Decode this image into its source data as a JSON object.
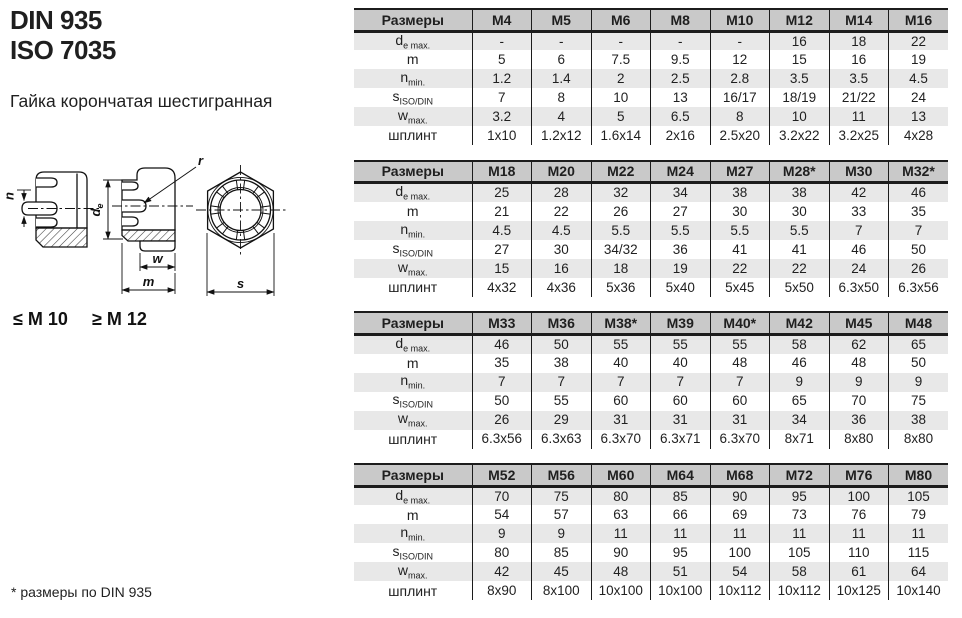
{
  "header": {
    "standard1": "DIN 935",
    "standard2": "ISO 7035",
    "product_name": "Гайка корончатая шестигранная"
  },
  "drawing": {
    "size_small": "≤ M 10",
    "size_large": "≥ M 12",
    "dims": {
      "n": "n",
      "de_main": "d",
      "de_sub": "e",
      "r": "r",
      "w": "w",
      "m": "m",
      "s": "s"
    }
  },
  "footnote": "* размеры по DIN 935",
  "colors": {
    "table_header_bg": "#c9c9c9",
    "row_stripe_bg": "#e8e8e8",
    "table_line": "#1c1c1c"
  },
  "tables": [
    {
      "header_label": "Размеры",
      "columns": [
        "M4",
        "M5",
        "M6",
        "M8",
        "M10",
        "M12",
        "M14",
        "M16"
      ],
      "rows": [
        {
          "label_main": "d",
          "label_sub": "e max.",
          "values": [
            "-",
            "-",
            "-",
            "-",
            "-",
            "16",
            "18",
            "22"
          ]
        },
        {
          "label_main": "m",
          "label_sub": "",
          "values": [
            "5",
            "6",
            "7.5",
            "9.5",
            "12",
            "15",
            "16",
            "19"
          ]
        },
        {
          "label_main": "n",
          "label_sub": "min.",
          "values": [
            "1.2",
            "1.4",
            "2",
            "2.5",
            "2.8",
            "3.5",
            "3.5",
            "4.5"
          ]
        },
        {
          "label_main": "s",
          "label_sub": "ISO/DIN",
          "values": [
            "7",
            "8",
            "10",
            "13",
            "16/17",
            "18/19",
            "21/22",
            "24"
          ]
        },
        {
          "label_main": "w",
          "label_sub": "max.",
          "values": [
            "3.2",
            "4",
            "5",
            "6.5",
            "8",
            "10",
            "11",
            "13"
          ]
        },
        {
          "label_main": "шплинт",
          "label_sub": "",
          "values": [
            "1x10",
            "1.2x12",
            "1.6x14",
            "2x16",
            "2.5x20",
            "3.2x22",
            "3.2x25",
            "4x28"
          ]
        }
      ]
    },
    {
      "header_label": "Размеры",
      "columns": [
        "M18",
        "M20",
        "M22",
        "M24",
        "M27",
        "M28*",
        "M30",
        "M32*"
      ],
      "rows": [
        {
          "label_main": "d",
          "label_sub": "e max.",
          "values": [
            "25",
            "28",
            "32",
            "34",
            "38",
            "38",
            "42",
            "46"
          ]
        },
        {
          "label_main": "m",
          "label_sub": "",
          "values": [
            "21",
            "22",
            "26",
            "27",
            "30",
            "30",
            "33",
            "35"
          ]
        },
        {
          "label_main": "n",
          "label_sub": "min.",
          "values": [
            "4.5",
            "4.5",
            "5.5",
            "5.5",
            "5.5",
            "5.5",
            "7",
            "7"
          ]
        },
        {
          "label_main": "s",
          "label_sub": "ISO/DIN",
          "values": [
            "27",
            "30",
            "34/32",
            "36",
            "41",
            "41",
            "46",
            "50"
          ]
        },
        {
          "label_main": "w",
          "label_sub": "max.",
          "values": [
            "15",
            "16",
            "18",
            "19",
            "22",
            "22",
            "24",
            "26"
          ]
        },
        {
          "label_main": "шплинт",
          "label_sub": "",
          "values": [
            "4x32",
            "4x36",
            "5x36",
            "5x40",
            "5x45",
            "5x50",
            "6.3x50",
            "6.3x56"
          ]
        }
      ]
    },
    {
      "header_label": "Размеры",
      "columns": [
        "M33",
        "M36",
        "M38*",
        "M39",
        "M40*",
        "M42",
        "M45",
        "M48"
      ],
      "rows": [
        {
          "label_main": "d",
          "label_sub": "e max.",
          "values": [
            "46",
            "50",
            "55",
            "55",
            "55",
            "58",
            "62",
            "65"
          ]
        },
        {
          "label_main": "m",
          "label_sub": "",
          "values": [
            "35",
            "38",
            "40",
            "40",
            "48",
            "46",
            "48",
            "50"
          ]
        },
        {
          "label_main": "n",
          "label_sub": "min.",
          "values": [
            "7",
            "7",
            "7",
            "7",
            "7",
            "9",
            "9",
            "9"
          ]
        },
        {
          "label_main": "s",
          "label_sub": "ISO/DIN",
          "values": [
            "50",
            "55",
            "60",
            "60",
            "60",
            "65",
            "70",
            "75"
          ]
        },
        {
          "label_main": "w",
          "label_sub": "max.",
          "values": [
            "26",
            "29",
            "31",
            "31",
            "31",
            "34",
            "36",
            "38"
          ]
        },
        {
          "label_main": "шплинт",
          "label_sub": "",
          "values": [
            "6.3x56",
            "6.3x63",
            "6.3x70",
            "6.3x71",
            "6.3x70",
            "8x71",
            "8x80",
            "8x80"
          ]
        }
      ]
    },
    {
      "header_label": "Размеры",
      "columns": [
        "M52",
        "M56",
        "M60",
        "M64",
        "M68",
        "M72",
        "M76",
        "M80"
      ],
      "rows": [
        {
          "label_main": "d",
          "label_sub": "e max.",
          "values": [
            "70",
            "75",
            "80",
            "85",
            "90",
            "95",
            "100",
            "105"
          ]
        },
        {
          "label_main": "m",
          "label_sub": "",
          "values": [
            "54",
            "57",
            "63",
            "66",
            "69",
            "73",
            "76",
            "79"
          ]
        },
        {
          "label_main": "n",
          "label_sub": "min.",
          "values": [
            "9",
            "9",
            "11",
            "11",
            "11",
            "11",
            "11",
            "11"
          ]
        },
        {
          "label_main": "s",
          "label_sub": "ISO/DIN",
          "values": [
            "80",
            "85",
            "90",
            "95",
            "100",
            "105",
            "110",
            "115"
          ]
        },
        {
          "label_main": "w",
          "label_sub": "max.",
          "values": [
            "42",
            "45",
            "48",
            "51",
            "54",
            "58",
            "61",
            "64"
          ]
        },
        {
          "label_main": "шплинт",
          "label_sub": "",
          "values": [
            "8x90",
            "8x100",
            "10x100",
            "10x100",
            "10x112",
            "10x112",
            "10x125",
            "10x140"
          ]
        }
      ]
    }
  ]
}
